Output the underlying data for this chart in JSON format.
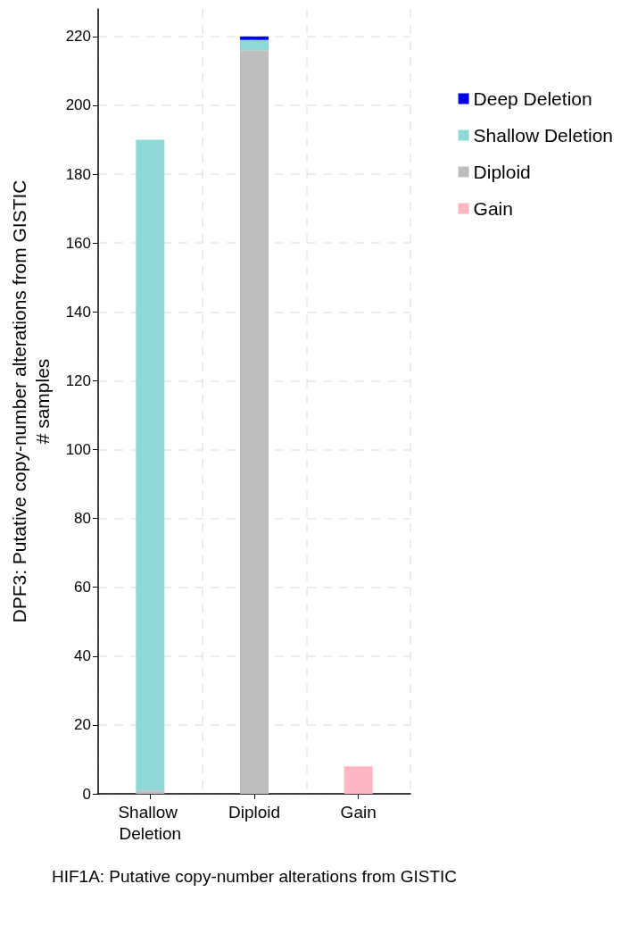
{
  "chart_data": {
    "type": "bar",
    "stacked": true,
    "categories": [
      "Shallow Deletion",
      "Diploid",
      "Gain"
    ],
    "xlabel": "HIF1A: Putative copy-number alterations from GISTIC",
    "ylabel": "DPF3: Putative copy-number alterations from GISTIC\n# samples",
    "series": [
      {
        "name": "Gain",
        "color": "#ffb6c1",
        "values": [
          null,
          null,
          8
        ]
      },
      {
        "name": "Diploid",
        "color": "#bebebe",
        "values": [
          1,
          216,
          null
        ]
      },
      {
        "name": "Shallow Deletion",
        "color": "#8fd8d8",
        "values": [
          189,
          3,
          null
        ]
      },
      {
        "name": "Deep Deletion",
        "color": "#0000ee",
        "values": [
          null,
          1,
          null
        ]
      }
    ],
    "ylim": [
      0,
      228
    ],
    "yticks": [
      0,
      20,
      40,
      60,
      80,
      100,
      120,
      140,
      160,
      180,
      200,
      220
    ],
    "grid": true,
    "legend": "top right"
  }
}
